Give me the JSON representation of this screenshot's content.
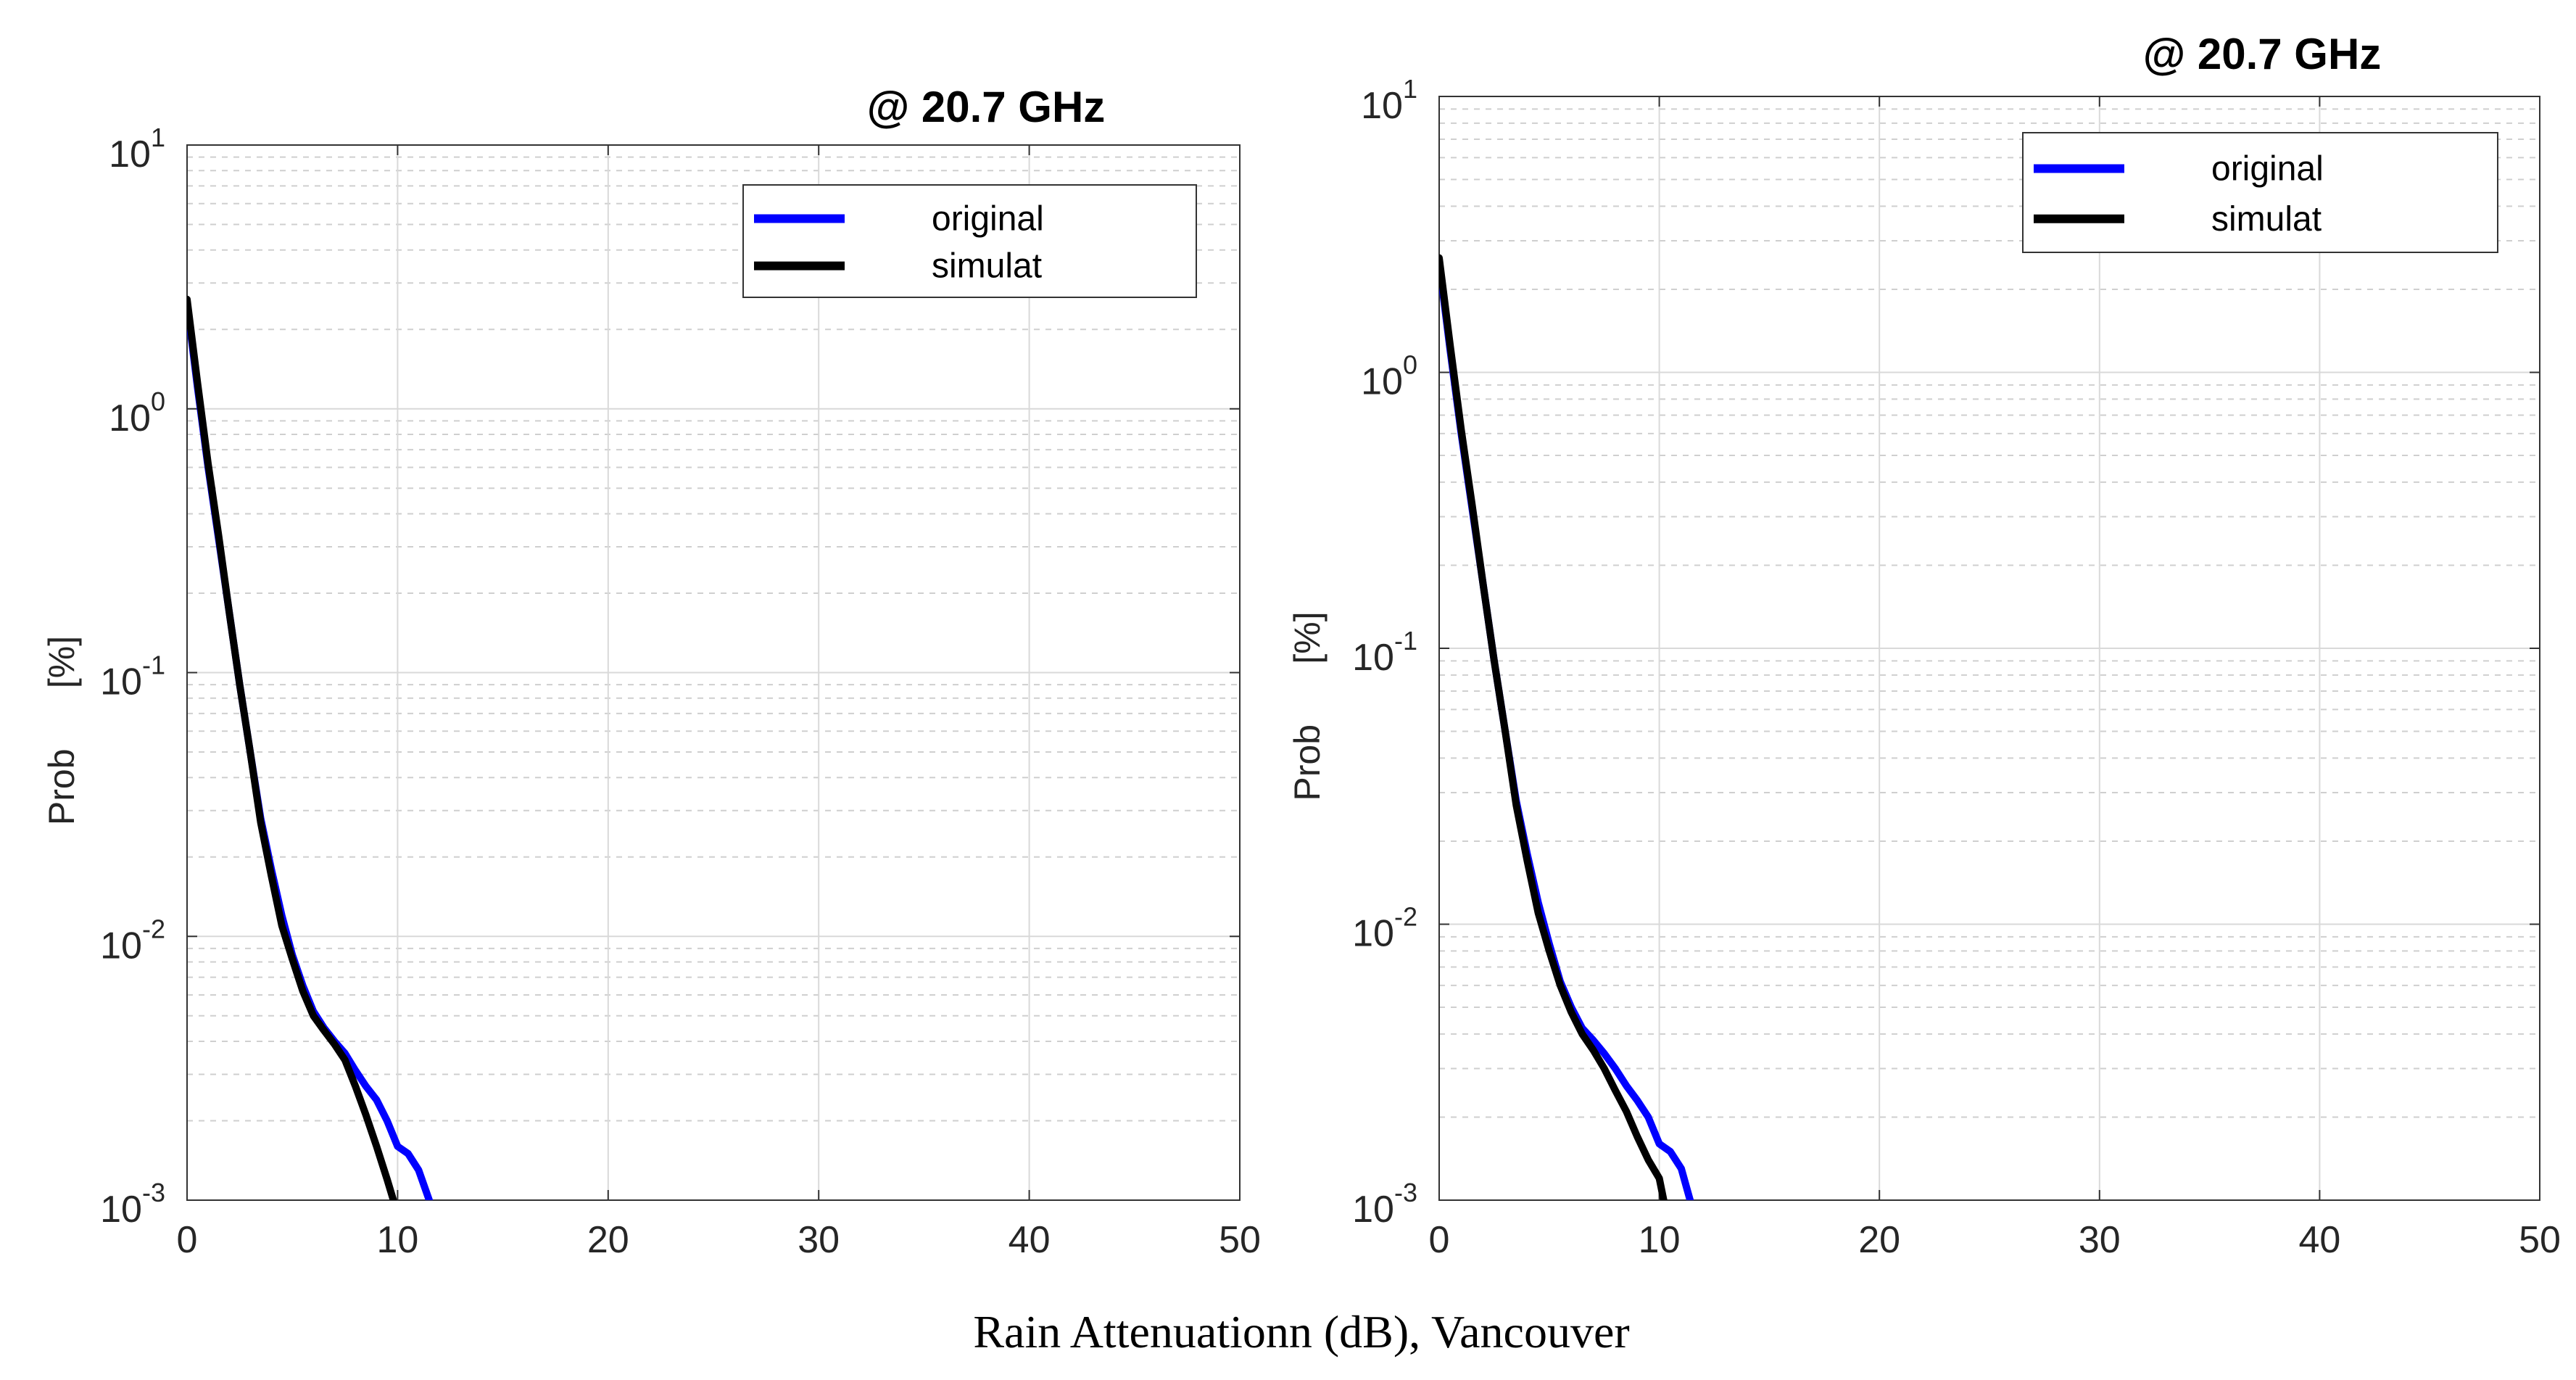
{
  "caption": "Rain Attenuationn (dB), Vancouver",
  "colors": {
    "original": "#0000ff",
    "simulat": "#000000",
    "grid": "#d9d9d9",
    "axis": "#000000"
  },
  "chart_data": [
    {
      "type": "line",
      "title": "@ 20.7 GHz",
      "xlabel": "",
      "ylabel": "Prob      [%]",
      "ylabel_parts": [
        "Prob",
        "[%]"
      ],
      "xlim": [
        0,
        50
      ],
      "ylim": [
        0.001,
        10
      ],
      "yscale": "log",
      "grid": true,
      "legend_position": "top-right",
      "x_ticks": [
        0,
        10,
        20,
        30,
        40,
        50
      ],
      "y_ticks": [
        {
          "value": 10,
          "base": "10",
          "exp": "1"
        },
        {
          "value": 1,
          "base": "10",
          "exp": "0"
        },
        {
          "value": 0.1,
          "base": "10",
          "exp": "-1"
        },
        {
          "value": 0.01,
          "base": "10",
          "exp": "-2"
        },
        {
          "value": 0.001,
          "base": "10",
          "exp": "-3"
        }
      ],
      "series": [
        {
          "name": "original",
          "color": "#0000ff",
          "x": [
            0,
            0.5,
            1,
            1.5,
            2,
            2.5,
            3,
            3.5,
            4,
            4.5,
            5,
            5.5,
            6,
            6.5,
            7,
            7.5,
            8,
            8.5,
            9,
            9.5,
            10,
            10.5,
            11,
            11.5
          ],
          "y": [
            2.5,
            1.2,
            0.6,
            0.32,
            0.17,
            0.09,
            0.05,
            0.028,
            0.018,
            0.012,
            0.0085,
            0.0065,
            0.0052,
            0.0045,
            0.004,
            0.0036,
            0.0031,
            0.0027,
            0.0024,
            0.002,
            0.0016,
            0.0015,
            0.0013,
            0.001
          ]
        },
        {
          "name": "simulat",
          "color": "#000000",
          "x": [
            0,
            0.5,
            1,
            1.5,
            2,
            2.5,
            3,
            3.5,
            4,
            4.5,
            5,
            5.5,
            6,
            6.5,
            7,
            7.5,
            8,
            8.5,
            9,
            9.5,
            9.8
          ],
          "y": [
            2.6,
            1.25,
            0.62,
            0.33,
            0.17,
            0.09,
            0.05,
            0.027,
            0.017,
            0.011,
            0.0082,
            0.0062,
            0.005,
            0.0044,
            0.0039,
            0.0034,
            0.0027,
            0.0021,
            0.0016,
            0.0012,
            0.001
          ]
        }
      ]
    },
    {
      "type": "line",
      "title": "@ 20.7 GHz",
      "xlabel": "",
      "ylabel": "Prob      [%]",
      "ylabel_parts": [
        "Prob",
        "[%]"
      ],
      "xlim": [
        0,
        50
      ],
      "ylim": [
        0.001,
        10
      ],
      "yscale": "log",
      "grid": true,
      "legend_position": "top-right",
      "x_ticks": [
        0,
        10,
        20,
        30,
        40,
        50
      ],
      "y_ticks": [
        {
          "value": 10,
          "base": "10",
          "exp": "1"
        },
        {
          "value": 1,
          "base": "10",
          "exp": "0"
        },
        {
          "value": 0.1,
          "base": "10",
          "exp": "-1"
        },
        {
          "value": 0.01,
          "base": "10",
          "exp": "-2"
        },
        {
          "value": 0.001,
          "base": "10",
          "exp": "-3"
        }
      ],
      "series": [
        {
          "name": "original",
          "color": "#0000ff",
          "x": [
            0,
            0.5,
            1,
            1.5,
            2,
            2.5,
            3,
            3.5,
            4,
            4.5,
            5,
            5.5,
            6,
            6.5,
            7,
            7.5,
            8,
            8.5,
            9,
            9.5,
            10,
            10.5,
            11,
            11.4
          ],
          "y": [
            2.5,
            1.2,
            0.6,
            0.32,
            0.17,
            0.09,
            0.05,
            0.028,
            0.018,
            0.012,
            0.0085,
            0.0062,
            0.005,
            0.0042,
            0.0038,
            0.0034,
            0.003,
            0.0026,
            0.0023,
            0.002,
            0.0016,
            0.0015,
            0.0013,
            0.001
          ]
        },
        {
          "name": "simulat",
          "color": "#000000",
          "x": [
            0,
            0.5,
            1,
            1.5,
            2,
            2.5,
            3,
            3.5,
            4,
            4.5,
            5,
            5.5,
            6,
            6.5,
            7,
            7.5,
            8,
            8.5,
            9,
            9.5,
            10,
            10.2
          ],
          "y": [
            2.6,
            1.25,
            0.62,
            0.33,
            0.17,
            0.09,
            0.05,
            0.027,
            0.017,
            0.011,
            0.008,
            0.006,
            0.0048,
            0.004,
            0.0035,
            0.003,
            0.0025,
            0.0021,
            0.0017,
            0.0014,
            0.0012,
            0.001
          ]
        }
      ]
    }
  ]
}
